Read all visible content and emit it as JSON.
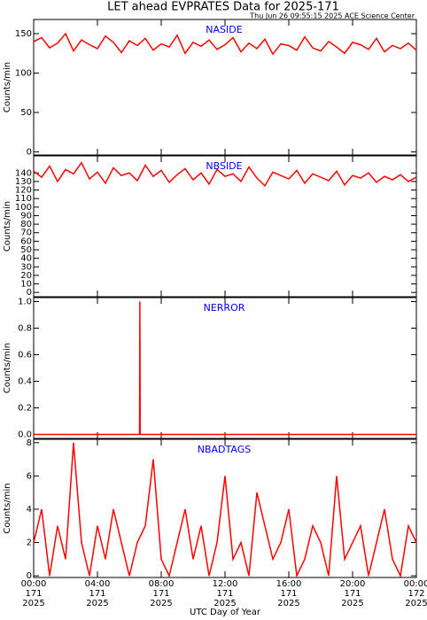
{
  "title": "LET ahead EVPRATES Data for 2025-171",
  "subtitle": "Thu Jun 26 09:55:15 2025 ACE Science Center",
  "chart_data": [
    {
      "type": "line",
      "title": "NASIDE",
      "ylabel": "Counts/min",
      "color": "#ff0000",
      "xlim": [
        0,
        24
      ],
      "ylim": [
        -4,
        168
      ],
      "yticks": [
        0,
        50,
        100,
        150
      ],
      "x": [
        0,
        0.5,
        1,
        1.5,
        2,
        2.5,
        3,
        3.5,
        4,
        4.5,
        5,
        5.5,
        6,
        6.5,
        7,
        7.5,
        8,
        8.5,
        9,
        9.5,
        10,
        10.5,
        11,
        11.5,
        12,
        12.5,
        13,
        13.5,
        14,
        14.5,
        15,
        15.5,
        16,
        16.5,
        17,
        17.5,
        18,
        18.5,
        19,
        19.5,
        20,
        20.5,
        21,
        21.5,
        22,
        22.5,
        23,
        23.5,
        24
      ],
      "values": [
        140,
        145,
        132,
        138,
        150,
        128,
        142,
        136,
        131,
        147,
        139,
        126,
        141,
        135,
        144,
        129,
        137,
        133,
        148,
        125,
        139,
        134,
        142,
        130,
        136,
        145,
        127,
        138,
        131,
        143,
        124,
        137,
        135,
        129,
        146,
        132,
        128,
        140,
        133,
        125,
        139,
        136,
        130,
        144,
        127,
        135,
        131,
        138,
        129
      ]
    },
    {
      "type": "line",
      "title": "NBSIDE",
      "ylabel": "Counts/min",
      "color": "#ff0000",
      "xlim": [
        0,
        24
      ],
      "ylim": [
        -5,
        160
      ],
      "yticks": [
        0,
        10,
        20,
        30,
        40,
        50,
        60,
        70,
        80,
        90,
        100,
        110,
        120,
        130,
        140
      ],
      "x": [
        0,
        0.5,
        1,
        1.5,
        2,
        2.5,
        3,
        3.5,
        4,
        4.5,
        5,
        5.5,
        6,
        6.5,
        7,
        7.5,
        8,
        8.5,
        9,
        9.5,
        10,
        10.5,
        11,
        11.5,
        12,
        12.5,
        13,
        13.5,
        14,
        14.5,
        15,
        15.5,
        16,
        16.5,
        17,
        17.5,
        18,
        18.5,
        19,
        19.5,
        20,
        20.5,
        21,
        21.5,
        22,
        22.5,
        23,
        23.5,
        24
      ],
      "values": [
        142,
        135,
        148,
        130,
        144,
        139,
        152,
        133,
        141,
        128,
        146,
        137,
        140,
        131,
        149,
        136,
        143,
        129,
        138,
        145,
        132,
        140,
        127,
        144,
        136,
        139,
        130,
        147,
        134,
        125,
        141,
        137,
        133,
        143,
        128,
        139,
        135,
        131,
        142,
        126,
        137,
        134,
        140,
        129,
        136,
        132,
        138,
        130,
        135
      ]
    },
    {
      "type": "line",
      "title": "NERROR",
      "ylabel": "Counts/min",
      "color": "#ff0000",
      "xlim": [
        0,
        24
      ],
      "ylim": [
        -0.03,
        1.03
      ],
      "yticks": [
        {
          "value": 0,
          "label": "0.0"
        },
        {
          "value": 0.2,
          "label": "0.2"
        },
        {
          "value": 0.4,
          "label": "0.4"
        },
        {
          "value": 0.6,
          "label": "0.6"
        },
        {
          "value": 0.8,
          "label": "0.8"
        },
        {
          "value": 1,
          "label": "1.0"
        }
      ],
      "x": [
        0,
        6.64,
        6.66,
        6.68,
        24
      ],
      "values": [
        0,
        0,
        1,
        0,
        0
      ]
    },
    {
      "type": "line",
      "title": "NBADTAGS",
      "ylabel": "Counts/min",
      "color": "#ff0000",
      "xlim": [
        0,
        24
      ],
      "ylim": [
        -0.1,
        8.2
      ],
      "yticks": [
        0,
        2,
        4,
        6,
        8
      ],
      "x": [
        0,
        0.5,
        1,
        1.5,
        2,
        2.5,
        3,
        3.5,
        4,
        4.5,
        5,
        5.5,
        6,
        6.5,
        7,
        7.5,
        8,
        8.5,
        9,
        9.5,
        10,
        10.5,
        11,
        11.5,
        12,
        12.5,
        13,
        13.5,
        14,
        14.5,
        15,
        15.5,
        16,
        16.5,
        17,
        17.5,
        18,
        18.5,
        19,
        19.5,
        20,
        20.5,
        21,
        21.5,
        22,
        22.5,
        23,
        23.5,
        24
      ],
      "values": [
        2,
        4,
        0,
        3,
        1,
        8,
        2,
        0,
        3,
        1,
        4,
        2,
        0,
        2,
        3,
        7,
        1,
        0,
        2,
        4,
        1,
        3,
        0,
        2,
        6,
        1,
        2,
        0,
        5,
        3,
        1,
        2,
        4,
        0,
        1,
        3,
        2,
        0,
        6,
        1,
        2,
        3,
        0,
        2,
        4,
        1,
        0,
        3,
        2
      ],
      "xlabel": "UTC Day of Year",
      "xticks": [
        {
          "value": 0,
          "label": "00:00"
        },
        {
          "value": 4,
          "label": "04:00"
        },
        {
          "value": 8,
          "label": "08:00"
        },
        {
          "value": 12,
          "label": "12:00"
        },
        {
          "value": 16,
          "label": "16:00"
        },
        {
          "value": 20,
          "label": "20:00"
        },
        {
          "value": 24,
          "label": "00:00"
        }
      ],
      "xtick_days": [
        "171",
        "171",
        "171",
        "171",
        "171",
        "171",
        "172"
      ],
      "xtick_years": [
        "2025",
        "2025",
        "2025",
        "2025",
        "2025",
        "2025",
        "2025"
      ]
    }
  ]
}
